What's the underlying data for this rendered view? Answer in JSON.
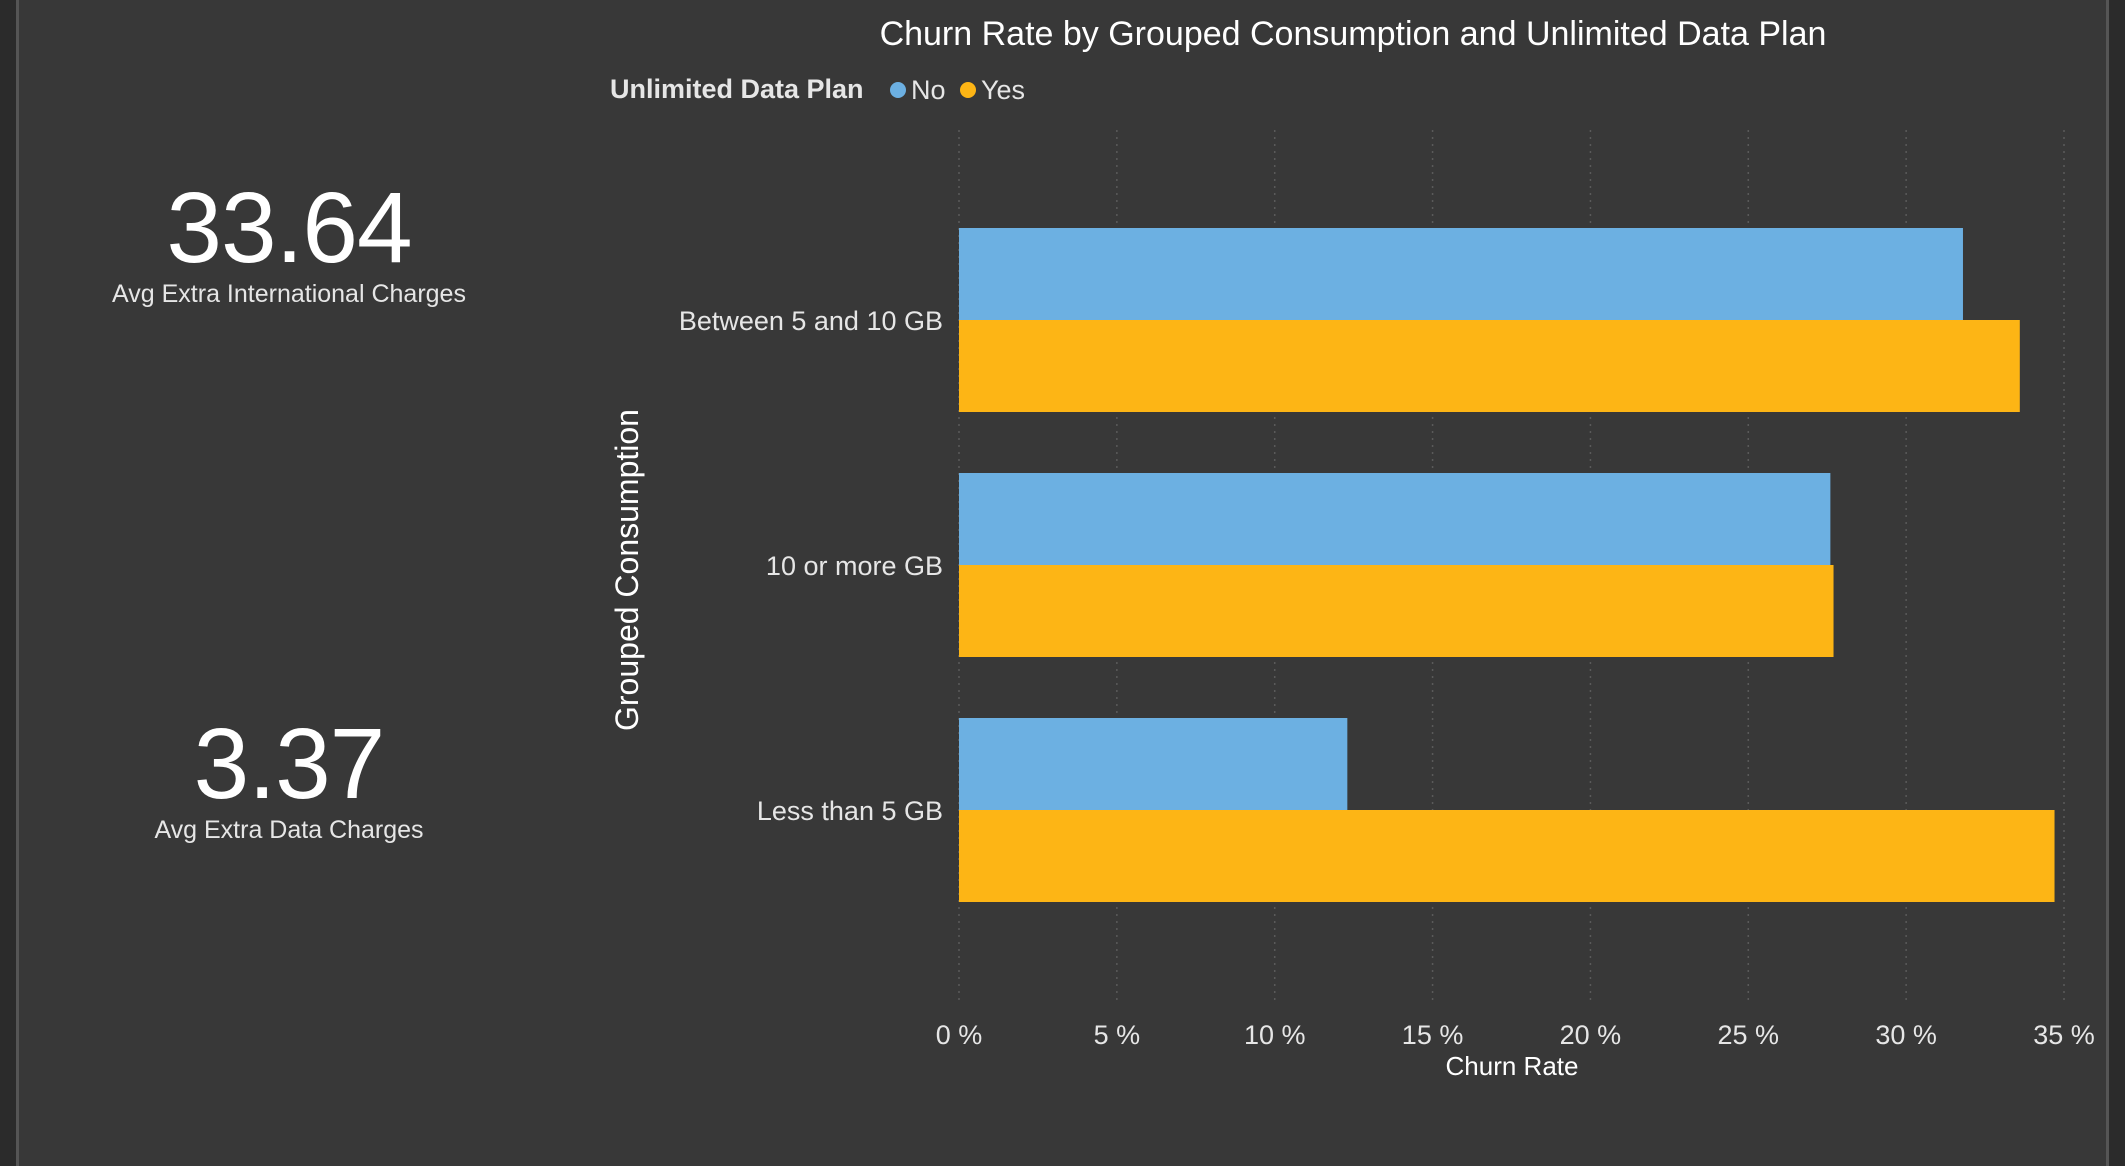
{
  "kpis": {
    "intl": {
      "value": "33.64",
      "label": "Avg Extra International Charges"
    },
    "data": {
      "value": "3.37",
      "label": "Avg Extra Data Charges"
    }
  },
  "chart_data": {
    "type": "bar",
    "orientation": "horizontal",
    "title": "Churn Rate by Grouped Consumption and Unlimited Data Plan",
    "legend_title": "Unlimited Data Plan",
    "legend_position": "top-left",
    "categories": [
      "Between 5 and 10 GB",
      "10 or more GB",
      "Less than 5 GB"
    ],
    "series": [
      {
        "name": "No",
        "color": "#6cb0e2",
        "values": [
          31.8,
          27.6,
          12.3
        ]
      },
      {
        "name": "Yes",
        "color": "#fdb515",
        "values": [
          33.6,
          27.7,
          34.7
        ]
      }
    ],
    "xlabel": "Churn Rate",
    "ylabel": "Grouped Consumption",
    "xlim": [
      0,
      35
    ],
    "xticks": [
      0,
      5,
      10,
      15,
      20,
      25,
      30,
      35
    ],
    "xtick_labels": [
      "0 %",
      "5 %",
      "10 %",
      "15 %",
      "20 %",
      "25 %",
      "30 %",
      "35 %"
    ],
    "grid": true,
    "colors": {
      "background": "#383838",
      "text": "#ffffff",
      "tick_text": "#e6e6e6",
      "grid": "#5a5a5a"
    }
  }
}
